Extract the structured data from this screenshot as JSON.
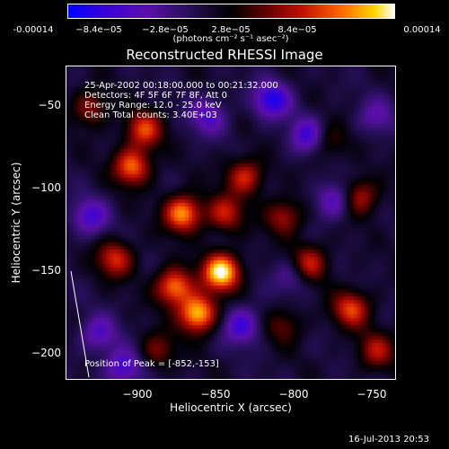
{
  "colorbar": {
    "ticks": [
      "-0.00014",
      "−8.4e−05",
      "−2.8e−05",
      "2.8e−05",
      "8.4e−05",
      "0.00014"
    ],
    "unit_line": "(photons cm⁻² s⁻¹ asec⁻²)"
  },
  "chart_data": {
    "type": "heatmap",
    "title": "Reconstructed RHESSI Image",
    "xlabel": "Heliocentric X (arcsec)",
    "ylabel": "Heliocentric Y (arcsec)",
    "xlim": [
      -944,
      -748
    ],
    "ylim": [
      -218,
      -30
    ],
    "x_ticks": [
      "−900",
      "−850",
      "−800",
      "−750"
    ],
    "x_tick_values": [
      -900,
      -850,
      -800,
      -750
    ],
    "y_ticks": [
      "−50",
      "−100",
      "−150",
      "−200"
    ],
    "y_tick_values": [
      -50,
      -100,
      -150,
      -200
    ],
    "color_range": [
      -0.00014,
      0.00014
    ],
    "colormap": [
      "#0000ff",
      "#5b10a8",
      "#000000",
      "#c41000",
      "#ff6a00",
      "#ffd800",
      "#ffffff"
    ],
    "peak_position": [
      -852,
      -153
    ],
    "annotations": [
      "25-Apr-2002 00:18:00.000 to 00:21:32.000",
      "Detectors: 4F 5F 6F 7F 8F, Att 0",
      "Energy Range: 12.0 - 25.0 keV",
      "Clean     Total counts: 3.40E+03",
      "Position of Peak = [-852,-153]"
    ],
    "sources": [
      {
        "x": -852,
        "y": -153,
        "amp": 1.0
      },
      {
        "x": -866,
        "y": -178,
        "amp": 0.9
      },
      {
        "x": -880,
        "y": -162,
        "amp": 0.75
      },
      {
        "x": -875,
        "y": -118,
        "amp": 0.8
      },
      {
        "x": -905,
        "y": -90,
        "amp": 0.7
      },
      {
        "x": -898,
        "y": -68,
        "amp": 0.6
      },
      {
        "x": -915,
        "y": -145,
        "amp": 0.55
      },
      {
        "x": -838,
        "y": -96,
        "amp": 0.55
      },
      {
        "x": -850,
        "y": -118,
        "amp": 0.5
      },
      {
        "x": -815,
        "y": -120,
        "amp": 0.45
      },
      {
        "x": -800,
        "y": -148,
        "amp": 0.55
      },
      {
        "x": -770,
        "y": -108,
        "amp": 0.5
      },
      {
        "x": -775,
        "y": -175,
        "amp": 0.6
      },
      {
        "x": -760,
        "y": -200,
        "amp": 0.45
      },
      {
        "x": -930,
        "y": -55,
        "amp": 0.4
      },
      {
        "x": -890,
        "y": -200,
        "amp": 0.35
      },
      {
        "x": -815,
        "y": -185,
        "amp": 0.3
      },
      {
        "x": -790,
        "y": -75,
        "amp": 0.35
      },
      {
        "x": -822,
        "y": -50,
        "amp": -0.6
      },
      {
        "x": -800,
        "y": -72,
        "amp": -0.55
      },
      {
        "x": -860,
        "y": -60,
        "amp": -0.4
      },
      {
        "x": -910,
        "y": -210,
        "amp": -0.5
      },
      {
        "x": -925,
        "y": -190,
        "amp": -0.4
      },
      {
        "x": -840,
        "y": -185,
        "amp": -0.5
      },
      {
        "x": -785,
        "y": -110,
        "amp": -0.45
      },
      {
        "x": -930,
        "y": -120,
        "amp": -0.45
      },
      {
        "x": -810,
        "y": -155,
        "amp": -0.3
      },
      {
        "x": -760,
        "y": -60,
        "amp": -0.3
      }
    ]
  },
  "footer": "16-Jul-2013 20:53"
}
